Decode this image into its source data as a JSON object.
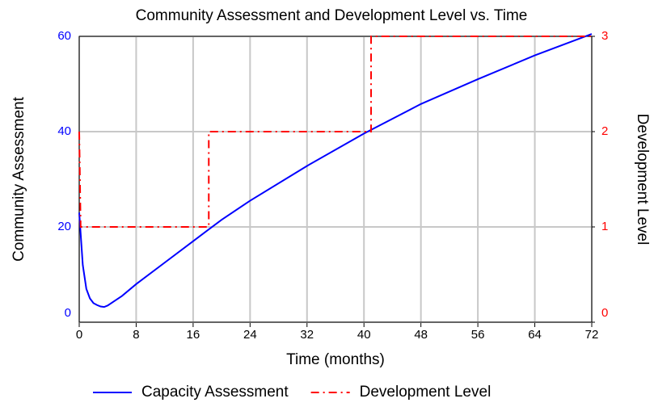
{
  "chart_data": {
    "type": "line",
    "title": "Community Assessment and Development Level vs. Time",
    "xlabel": "Time (months)",
    "ylabel": "Community Assessment",
    "y2label": "Development Level",
    "xlim": [
      0,
      72
    ],
    "xticks": [
      0,
      8,
      16,
      24,
      32,
      40,
      48,
      56,
      64,
      72
    ],
    "ylim": [
      0,
      60
    ],
    "yticks": [
      0,
      20,
      40,
      60
    ],
    "y2lim": [
      0,
      3
    ],
    "y2ticks": [
      0,
      1,
      2,
      3
    ],
    "grid": true,
    "legend": "bottom",
    "series": [
      {
        "name": "Capacity Assessment",
        "color": "#0000ff",
        "style": "solid",
        "x": [
          0,
          0.5,
          1,
          1.5,
          2,
          2.5,
          3,
          3.5,
          4,
          5,
          6,
          8,
          12,
          16,
          20,
          24,
          32,
          40,
          48,
          56,
          64,
          72
        ],
        "values": [
          23,
          12,
          7,
          5,
          4,
          3.6,
          3.3,
          3.2,
          3.5,
          4.5,
          5.5,
          8,
          12.5,
          17,
          21.5,
          25.5,
          32.8,
          39.6,
          45.8,
          51,
          56,
          60.5
        ]
      },
      {
        "name": "Development Level",
        "color": "#ff0000",
        "style": "dashdot",
        "axis": "y2",
        "x": [
          0,
          0.2,
          18.2,
          18.2,
          41,
          41,
          72
        ],
        "values": [
          2,
          1,
          1,
          2,
          2,
          3,
          3
        ]
      }
    ]
  }
}
